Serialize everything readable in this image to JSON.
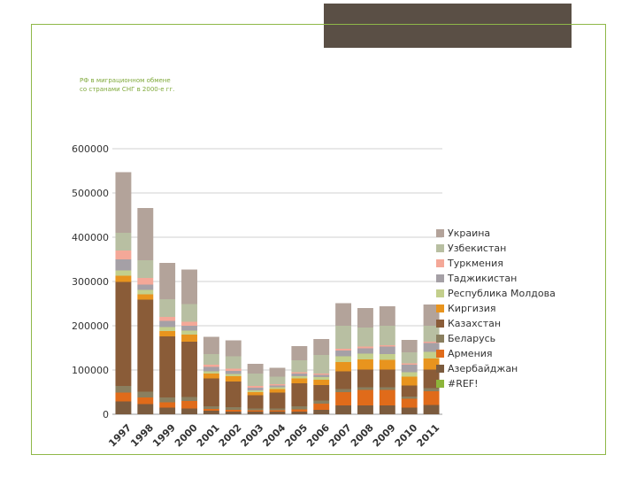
{
  "slide": {
    "title_line1": "РФ в миграционном обмене",
    "title_line2": "со странами СНГ в 2000-е гг."
  },
  "colors": {
    "frame": "#8fb848",
    "title": "#7fa93a",
    "header_block": "#5a4f45"
  },
  "chart_data": {
    "type": "bar",
    "stacked": true,
    "categories": [
      "1997",
      "1998",
      "1999",
      "2000",
      "2001",
      "2002",
      "2003",
      "2004",
      "2005",
      "2006",
      "2007",
      "2008",
      "2009",
      "2010",
      "2011"
    ],
    "ylim": [
      0,
      600000
    ],
    "yticks": [
      0,
      100000,
      200000,
      300000,
      400000,
      500000,
      600000
    ],
    "grid": true,
    "legend_position": "right",
    "series": [
      {
        "name": "#REF!",
        "color": "#8db53a",
        "values": [
          0,
          0,
          0,
          0,
          0,
          0,
          0,
          0,
          0,
          0,
          0,
          0,
          0,
          0,
          0
        ]
      },
      {
        "name": "Азербайджан",
        "color": "#7b5b3e",
        "values": [
          29000,
          23000,
          15000,
          13000,
          8000,
          6000,
          6000,
          6000,
          6000,
          10000,
          20000,
          20000,
          20000,
          15000,
          21000
        ]
      },
      {
        "name": "Армения",
        "color": "#e06b1a",
        "values": [
          20000,
          15000,
          12000,
          17000,
          4000,
          4000,
          3000,
          3000,
          5000,
          14000,
          30000,
          35000,
          35000,
          20000,
          31000
        ]
      },
      {
        "name": "Беларусь",
        "color": "#8a7f5f",
        "values": [
          15000,
          13000,
          11000,
          9000,
          6000,
          6000,
          4000,
          4000,
          7000,
          7000,
          7000,
          6000,
          6000,
          5000,
          7000
        ]
      },
      {
        "name": "Казахстан",
        "color": "#8a5c38",
        "values": [
          235000,
          208000,
          138000,
          125000,
          63000,
          58000,
          30000,
          36000,
          52000,
          35000,
          40000,
          40000,
          40000,
          25000,
          42000
        ]
      },
      {
        "name": "Киргизия",
        "color": "#e8941e",
        "values": [
          14000,
          12000,
          12000,
          16000,
          11000,
          12000,
          7000,
          8000,
          11000,
          12000,
          21000,
          23000,
          22000,
          20000,
          25000
        ]
      },
      {
        "name": "Республика Молдова",
        "color": "#c3cf8c",
        "values": [
          12000,
          10000,
          9000,
          9000,
          5000,
          5000,
          4000,
          4000,
          5000,
          6000,
          13000,
          13000,
          13000,
          10000,
          15000
        ]
      },
      {
        "name": "Таджикистан",
        "color": "#a5a0a6",
        "values": [
          25000,
          12000,
          14000,
          11000,
          10000,
          7000,
          6000,
          4000,
          6000,
          5000,
          13000,
          12000,
          17000,
          17000,
          20000
        ]
      },
      {
        "name": "Туркмения",
        "color": "#f4a898",
        "values": [
          20000,
          15000,
          9000,
          9000,
          5000,
          5000,
          4000,
          3000,
          3000,
          3000,
          4000,
          4000,
          3000,
          3000,
          3000
        ]
      },
      {
        "name": "Узбекистан",
        "color": "#b8bfa2",
        "values": [
          40000,
          40000,
          40000,
          40000,
          24000,
          28000,
          28000,
          17000,
          27000,
          42000,
          52000,
          43000,
          44000,
          25000,
          36000
        ]
      },
      {
        "name": "Украина",
        "color": "#b3a39a",
        "values": [
          137000,
          118000,
          82000,
          78000,
          39000,
          36000,
          22000,
          20000,
          32000,
          36000,
          51000,
          44000,
          44000,
          28000,
          48000
        ]
      }
    ]
  }
}
